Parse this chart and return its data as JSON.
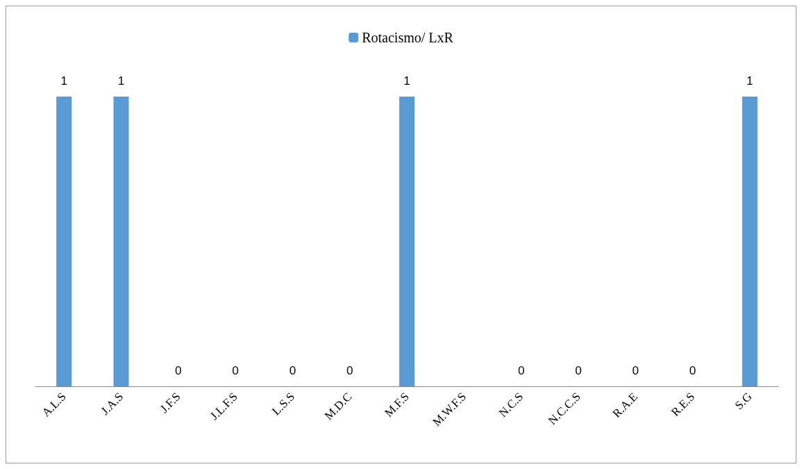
{
  "chart_data": {
    "type": "bar",
    "categories": [
      "A.L.S",
      "J.A.S",
      "J.F.S",
      "J.L.F.S",
      "L.S.S",
      "M.D.C",
      "M.F.S",
      "M.W.F.S",
      "N.C.S",
      "N.C.C.S",
      "R.A.E",
      "R.E.S",
      "S.G"
    ],
    "series": [
      {
        "name": "Rotacismo/ LxR",
        "color": "#5b9bd5",
        "values": [
          1,
          1,
          0,
          0,
          0,
          0,
          1,
          null,
          0,
          0,
          0,
          0,
          1
        ]
      }
    ],
    "data_labels": true,
    "legend": "top"
  }
}
